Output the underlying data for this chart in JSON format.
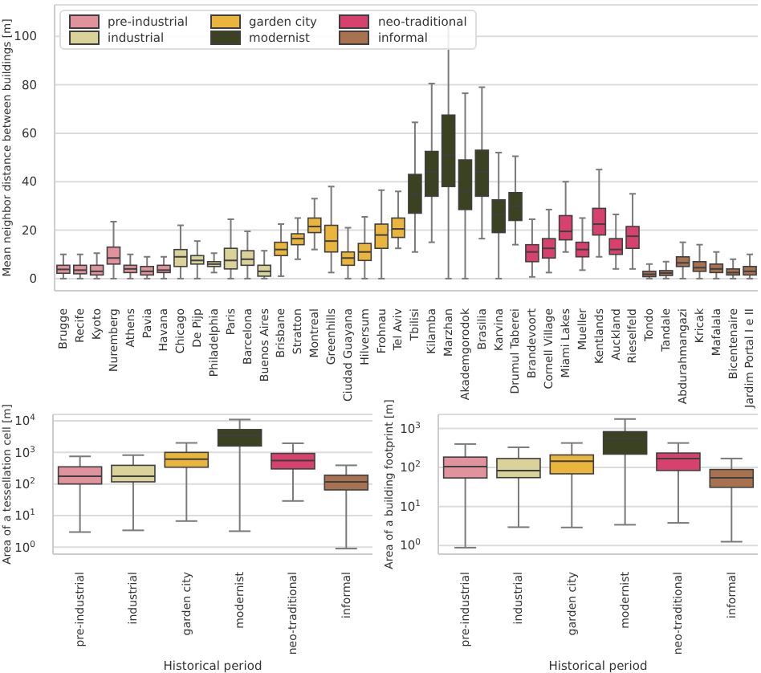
{
  "chart_data": [
    {
      "type": "box",
      "ylabel": "Mean neighbor distance between buildings [m]",
      "legend": "top left",
      "grid": "y",
      "ylim": [
        -5,
        113
      ],
      "yticks": [
        0,
        20,
        40,
        60,
        80,
        100
      ],
      "categories": [
        "Brugge",
        "Recife",
        "Kyoto",
        "Nuremberg",
        "Athens",
        "Pavia",
        "Havana",
        "Chicago",
        "De Pijp",
        "Philadelphia",
        "Paris",
        "Barcelona",
        "Buenos Aires",
        "Brisbane",
        "Stratton",
        "Montreal",
        "Greenhills",
        "Ciudad Guayana",
        "Hilversum",
        "Frohnau",
        "Tel Aviv",
        "Tbilisi",
        "Kilamba",
        "Marzhan",
        "Akademgorodok",
        "Brasilia",
        "Karvina",
        "Drumul Taberei",
        "Brandevoort",
        "Cornell Village",
        "Miami Lakes",
        "Mueller",
        "Kentlands",
        "Auckland",
        "Rieselfeld",
        "Tondo",
        "Tandale",
        "Abdurahmangazi",
        "Kricak",
        "Mafalala",
        "Bicentenaire",
        "Jardim Portal I e II"
      ],
      "series": [
        {
          "name": "pre-industrial",
          "color": "#e0939c",
          "boxes": [
            {
              "low": 0,
              "q1": 2.2,
              "median": 3.8,
              "q3": 5.5,
              "high": 10
            },
            {
              "low": 0,
              "q1": 2,
              "median": 3.5,
              "q3": 5.5,
              "high": 10
            },
            {
              "low": 0,
              "q1": 1.5,
              "median": 3,
              "q3": 5.5,
              "high": 10.5
            },
            {
              "low": 0,
              "q1": 6,
              "median": 8.5,
              "q3": 13,
              "high": 23.5
            },
            {
              "low": 0,
              "q1": 2.5,
              "median": 4,
              "q3": 5.5,
              "high": 10
            },
            {
              "low": 0,
              "q1": 1.5,
              "median": 3,
              "q3": 5,
              "high": 9
            },
            {
              "low": 0,
              "q1": 2.5,
              "median": 3.5,
              "q3": 5.5,
              "high": 9
            },
            null,
            null,
            null,
            null,
            null,
            null,
            null,
            null,
            null,
            null,
            null,
            null,
            null,
            null,
            null,
            null,
            null,
            null,
            null,
            null,
            null,
            null,
            null,
            null,
            null,
            null,
            null,
            null,
            null,
            null,
            null,
            null,
            null,
            null,
            null
          ]
        },
        {
          "name": "industrial",
          "color": "#d9d39a",
          "boxes": [
            null,
            null,
            null,
            null,
            null,
            null,
            null,
            {
              "low": 0,
              "q1": 5,
              "median": 9,
              "q3": 12,
              "high": 22
            },
            {
              "low": 0,
              "q1": 6,
              "median": 7.5,
              "q3": 9.5,
              "high": 15.5
            },
            {
              "low": 2.5,
              "q1": 5,
              "median": 6,
              "q3": 7,
              "high": 10.5
            },
            {
              "low": 0,
              "q1": 4,
              "median": 7.5,
              "q3": 12.5,
              "high": 24.5
            },
            {
              "low": 0,
              "q1": 5.5,
              "median": 8,
              "q3": 11.5,
              "high": 19.5
            },
            {
              "low": 0,
              "q1": 1,
              "median": 3,
              "q3": 5.5,
              "high": 11.5
            },
            null,
            null,
            null,
            null,
            null,
            null,
            null,
            null,
            null,
            null,
            null,
            null,
            null,
            null,
            null,
            null,
            null,
            null,
            null,
            null,
            null,
            null,
            null,
            null,
            null,
            null,
            null,
            null,
            null
          ]
        },
        {
          "name": "garden city",
          "color": "#e9b53c",
          "boxes": [
            null,
            null,
            null,
            null,
            null,
            null,
            null,
            null,
            null,
            null,
            null,
            null,
            null,
            {
              "low": 1,
              "q1": 9.5,
              "median": 12,
              "q3": 15,
              "high": 22.5
            },
            {
              "low": 8,
              "q1": 14,
              "median": 16.5,
              "q3": 18.5,
              "high": 25
            },
            {
              "low": 12,
              "q1": 19,
              "median": 21.5,
              "q3": 25,
              "high": 33
            },
            {
              "low": 2.5,
              "q1": 11,
              "median": 15.5,
              "q3": 22,
              "high": 38
            },
            {
              "low": 0,
              "q1": 5.5,
              "median": 8.5,
              "q3": 11,
              "high": 21
            },
            {
              "low": 0,
              "q1": 7.5,
              "median": 11,
              "q3": 14.5,
              "high": 25.5
            },
            {
              "low": 0,
              "q1": 12.5,
              "median": 18,
              "q3": 22.5,
              "high": 36.5
            },
            {
              "low": 12.5,
              "q1": 17,
              "median": 20.5,
              "q3": 25,
              "high": 36
            },
            null,
            null,
            null,
            null,
            null,
            null,
            null,
            null,
            null,
            null,
            null,
            null,
            null,
            null,
            null,
            null,
            null,
            null,
            null,
            null,
            null
          ]
        },
        {
          "name": "modernist",
          "color": "#3b4221",
          "boxes": [
            null,
            null,
            null,
            null,
            null,
            null,
            null,
            null,
            null,
            null,
            null,
            null,
            null,
            null,
            null,
            null,
            null,
            null,
            null,
            null,
            null,
            {
              "low": 11,
              "q1": 27,
              "median": 35,
              "q3": 43,
              "high": 64.5
            },
            {
              "low": 15,
              "q1": 34,
              "median": 44,
              "q3": 52.5,
              "high": 80.5
            },
            {
              "low": 0,
              "q1": 38,
              "median": 51,
              "q3": 67.5,
              "high": 105.5
            },
            {
              "low": 0,
              "q1": 28.5,
              "median": 36,
              "q3": 49,
              "high": 76.5
            },
            {
              "low": 16.5,
              "q1": 34,
              "median": 44,
              "q3": 53,
              "high": 79
            },
            {
              "low": 0,
              "q1": 19,
              "median": 26.5,
              "q3": 32.5,
              "high": 52
            },
            {
              "low": 14,
              "q1": 24,
              "median": 30,
              "q3": 35.5,
              "high": 50.5
            },
            null,
            null,
            null,
            null,
            null,
            null,
            null,
            null,
            null,
            null,
            null,
            null,
            null,
            null
          ]
        },
        {
          "name": "neo-traditional",
          "color": "#d6416d",
          "boxes": [
            null,
            null,
            null,
            null,
            null,
            null,
            null,
            null,
            null,
            null,
            null,
            null,
            null,
            null,
            null,
            null,
            null,
            null,
            null,
            null,
            null,
            null,
            null,
            null,
            null,
            null,
            null,
            null,
            {
              "low": 0.7,
              "q1": 7,
              "median": 11,
              "q3": 14,
              "high": 24.5
            },
            {
              "low": 2.5,
              "q1": 8.5,
              "median": 12.5,
              "q3": 16.5,
              "high": 28.5
            },
            {
              "low": 11,
              "q1": 16,
              "median": 19.5,
              "q3": 26,
              "high": 40
            },
            {
              "low": 3.5,
              "q1": 9,
              "median": 12,
              "q3": 15,
              "high": 25
            },
            {
              "low": 9,
              "q1": 18,
              "median": 22.5,
              "q3": 29,
              "high": 45
            },
            {
              "low": 4,
              "q1": 10,
              "median": 12,
              "q3": 16.5,
              "high": 26.5
            },
            {
              "low": 4,
              "q1": 12.5,
              "median": 17.5,
              "q3": 21.5,
              "high": 35
            },
            null,
            null,
            null,
            null,
            null,
            null,
            null
          ]
        },
        {
          "name": "informal",
          "color": "#a8714f",
          "boxes": [
            null,
            null,
            null,
            null,
            null,
            null,
            null,
            null,
            null,
            null,
            null,
            null,
            null,
            null,
            null,
            null,
            null,
            null,
            null,
            null,
            null,
            null,
            null,
            null,
            null,
            null,
            null,
            null,
            null,
            null,
            null,
            null,
            null,
            null,
            null,
            {
              "low": 0,
              "q1": 0.8,
              "median": 1.8,
              "q3": 3,
              "high": 6
            },
            {
              "low": 0,
              "q1": 1.3,
              "median": 2.3,
              "q3": 3.3,
              "high": 7
            },
            {
              "low": 0,
              "q1": 5,
              "median": 6.5,
              "q3": 9,
              "high": 15
            },
            {
              "low": 0,
              "q1": 3,
              "median": 4.5,
              "q3": 7,
              "high": 14
            },
            {
              "low": 0,
              "q1": 2.5,
              "median": 4,
              "q3": 6,
              "high": 11
            },
            {
              "low": 0,
              "q1": 1.5,
              "median": 2.5,
              "q3": 4,
              "high": 8
            },
            {
              "low": 0,
              "q1": 1.5,
              "median": 3,
              "q3": 5,
              "high": 10
            }
          ]
        }
      ]
    },
    {
      "type": "box",
      "xlabel": "Historical period",
      "ylabel": "Area of a tessellation cell [m]",
      "grid": "y",
      "log": "y",
      "ylim": [
        0.6,
        16000
      ],
      "yticks": [
        {
          "value": 1,
          "label": "10$^{0}$"
        },
        {
          "value": 10,
          "label": "10$^{1}$"
        },
        {
          "value": 100,
          "label": "10$^{2}$"
        },
        {
          "value": 1000,
          "label": "10$^{3}$"
        },
        {
          "value": 10000,
          "label": "10$^{4}$"
        }
      ],
      "categories": [
        "pre-industrial",
        "industrial",
        "garden city",
        "modernist",
        "neo-traditional",
        "informal"
      ],
      "colors": [
        "#e0939c",
        "#d9d39a",
        "#e9b53c",
        "#3b4221",
        "#d6416d",
        "#a8714f"
      ],
      "boxes": [
        {
          "low": 3,
          "q1": 100,
          "median": 175,
          "q3": 350,
          "high": 750
        },
        {
          "low": 3.4,
          "q1": 117,
          "median": 175,
          "q3": 390,
          "high": 820
        },
        {
          "low": 6.7,
          "q1": 340,
          "median": 610,
          "q3": 1000,
          "high": 2000
        },
        {
          "low": 3.2,
          "q1": 1600,
          "median": 3500,
          "q3": 5300,
          "high": 11000
        },
        {
          "low": 29,
          "q1": 300,
          "median": 550,
          "q3": 930,
          "high": 1950
        },
        {
          "low": 0.9,
          "q1": 65,
          "median": 117,
          "q3": 190,
          "high": 390
        }
      ]
    },
    {
      "type": "box",
      "xlabel": "Historical period",
      "ylabel": "Area of a building footprint [m]",
      "grid": "y",
      "log": "y",
      "ylim": [
        0.6,
        2300
      ],
      "yticks": [
        {
          "value": 1,
          "label": "10$^{0}$"
        },
        {
          "value": 10,
          "label": "10$^{1}$"
        },
        {
          "value": 100,
          "label": "10$^{2}$"
        },
        {
          "value": 1000,
          "label": "10$^{3}$"
        }
      ],
      "categories": [
        "pre-industrial",
        "industrial",
        "garden city",
        "modernist",
        "neo-traditional",
        "informal"
      ],
      "colors": [
        "#e0939c",
        "#d9d39a",
        "#e9b53c",
        "#3b4221",
        "#d6416d",
        "#a8714f"
      ],
      "boxes": [
        {
          "low": 0.88,
          "q1": 54,
          "median": 105,
          "q3": 185,
          "high": 400
        },
        {
          "low": 2.95,
          "q1": 55,
          "median": 83,
          "q3": 170,
          "high": 330
        },
        {
          "low": 2.9,
          "q1": 69,
          "median": 145,
          "q3": 210,
          "high": 425
        },
        {
          "low": 3.4,
          "q1": 220,
          "median": 550,
          "q3": 830,
          "high": 1750
        },
        {
          "low": 3.8,
          "q1": 84,
          "median": 170,
          "q3": 235,
          "high": 425
        },
        {
          "low": 1.25,
          "q1": 31,
          "median": 54,
          "q3": 89,
          "high": 170
        }
      ]
    }
  ]
}
